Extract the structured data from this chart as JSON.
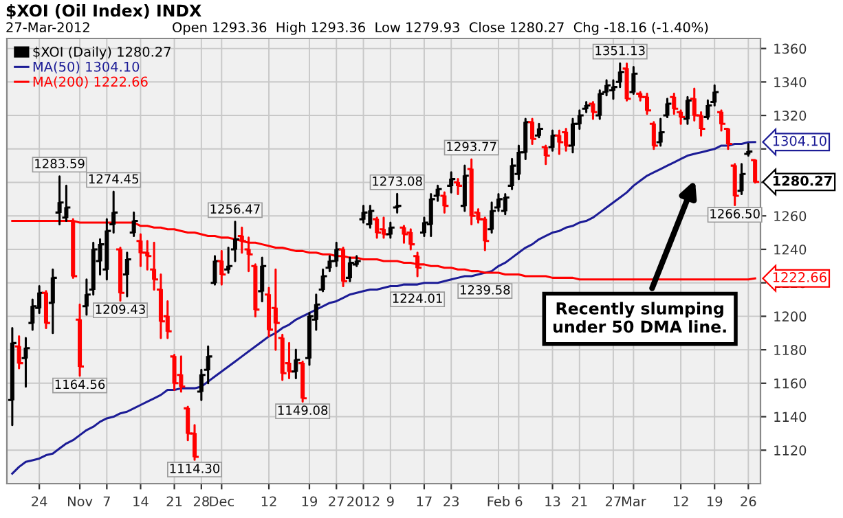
{
  "chart_data": {
    "type": "candlestick",
    "title": "$XOI (Oil Index) INDX",
    "subtitle": "27-Mar-2012",
    "annotations": [
      "Open 1293.36  High 1293.36  Low 1279.93  Close 1280.27  Chg -18.16 (-1.40%)",
      "Recently slumping\nunder 50 DMA line."
    ],
    "categories": [
      null,
      null,
      null,
      null,
      "24",
      null,
      null,
      null,
      null,
      null,
      "Nov",
      null,
      null,
      null,
      "7",
      null,
      null,
      null,
      null,
      "14",
      null,
      null,
      null,
      null,
      "21",
      null,
      null,
      null,
      "28",
      null,
      null,
      "Dec",
      null,
      null,
      null,
      null,
      null,
      null,
      "12",
      null,
      null,
      null,
      null,
      null,
      "19",
      null,
      null,
      null,
      "27",
      null,
      null,
      null,
      "2012",
      null,
      null,
      null,
      "9",
      null,
      null,
      null,
      null,
      "17",
      null,
      null,
      null,
      "23",
      null,
      null,
      null,
      null,
      null,
      null,
      "Feb",
      null,
      null,
      "6",
      null,
      null,
      null,
      null,
      "13",
      null,
      null,
      null,
      "21",
      null,
      null,
      null,
      null,
      "27",
      null,
      null,
      "Mar",
      null,
      null,
      null,
      null,
      null,
      null,
      "12",
      null,
      null,
      null,
      null,
      "19",
      null,
      null,
      null,
      null,
      "26",
      null
    ],
    "ylim": [
      1100,
      1366
    ],
    "yticks": [
      1120,
      1140,
      1160,
      1180,
      1200,
      1220,
      1240,
      1260,
      {
        "value": 1280,
        "label": null
      },
      {
        "value": 1300,
        "label": null
      },
      1320,
      1340,
      1360
    ],
    "grid": true,
    "legend": "top left",
    "series": [
      {
        "name": "$XOI (Daily) 1280.27",
        "ohlc": [
          [
            1150,
            1193,
            1135,
            1184
          ],
          [
            1182,
            1188,
            1169,
            1172
          ],
          [
            1175,
            1187,
            1158,
            1181
          ],
          [
            1196,
            1210,
            1192,
            1206
          ],
          [
            1205,
            1218,
            1202,
            1214
          ],
          [
            1214,
            1215,
            1193,
            1196
          ],
          [
            1208,
            1228,
            1190,
            1223
          ],
          [
            1262,
            1283.59,
            1255,
            1268
          ],
          [
            1259,
            1278,
            1257,
            1265
          ],
          [
            1257,
            1258,
            1223,
            1224
          ],
          [
            1198,
            1207,
            1164.56,
            1170
          ],
          [
            1206,
            1222,
            1201,
            1213
          ],
          [
            1216,
            1244,
            1213,
            1240
          ],
          [
            1233,
            1246,
            1225,
            1243
          ],
          [
            1228,
            1258,
            1222,
            1251
          ],
          [
            1255,
            1274.45,
            1250,
            1262
          ],
          [
            1240,
            1241,
            1209.43,
            1214
          ],
          [
            1225,
            1238,
            1212,
            1234
          ],
          [
            1250,
            1262,
            1248,
            1257
          ],
          [
            1245,
            1249,
            1230,
            1238
          ],
          [
            1238,
            1245,
            1228,
            1236
          ],
          [
            1228,
            1244,
            1216,
            1222
          ],
          [
            1216,
            1225,
            1187,
            1197
          ],
          [
            1200,
            1209,
            1187,
            1191
          ],
          [
            1176,
            1177,
            1156,
            1160
          ],
          [
            1165,
            1176,
            1155,
            1158
          ],
          [
            1145,
            1146,
            1126,
            1130
          ],
          [
            1130,
            1135,
            1114.3,
            1116
          ],
          [
            1155,
            1168,
            1150,
            1165
          ],
          [
            1168,
            1182,
            1160,
            1176
          ],
          [
            1220,
            1236,
            1219,
            1233
          ],
          [
            1233,
            1239,
            1219,
            1225
          ],
          [
            1228,
            1241,
            1226,
            1230
          ],
          [
            1240,
            1256.47,
            1233,
            1246
          ],
          [
            1248,
            1253,
            1238,
            1245
          ],
          [
            1240,
            1247,
            1227,
            1237
          ],
          [
            1230,
            1231,
            1200,
            1204
          ],
          [
            1215,
            1235,
            1209,
            1230
          ],
          [
            1213,
            1217,
            1188,
            1192
          ],
          [
            1205,
            1228,
            1180,
            1196
          ],
          [
            1187,
            1189,
            1162,
            1166
          ],
          [
            1172,
            1184,
            1163,
            1167
          ],
          [
            1167,
            1180,
            1163,
            1174
          ],
          [
            1172,
            1173,
            1149.08,
            1151
          ],
          [
            1175,
            1202,
            1171,
            1200
          ],
          [
            1198,
            1213,
            1192,
            1207
          ],
          [
            1216,
            1228,
            1215,
            1224
          ],
          [
            1229,
            1236,
            1227,
            1233
          ],
          [
            1233,
            1244,
            1230,
            1240
          ],
          [
            1240,
            1241,
            1218,
            1221
          ],
          [
            1223,
            1235,
            1221,
            1232
          ],
          [
            1231,
            1236,
            1230,
            1233
          ],
          [
            1258,
            1266,
            1256,
            1262
          ],
          [
            1255,
            1266,
            1253,
            1263
          ],
          [
            1258,
            1259,
            1247,
            1250
          ],
          [
            1252,
            1259,
            1247,
            1249
          ],
          [
            1249,
            1256,
            1247,
            1253
          ],
          [
            1265,
            1273.08,
            1262,
            1266
          ],
          [
            1253,
            1254,
            1244,
            1249
          ],
          [
            1250,
            1252,
            1240,
            1243
          ],
          [
            1236,
            1238,
            1224.01,
            1229
          ],
          [
            1250,
            1259,
            1248,
            1256
          ],
          [
            1255,
            1273,
            1248,
            1270
          ],
          [
            1272,
            1278,
            1269,
            1276
          ],
          [
            1272,
            1274,
            1262,
            1266
          ],
          [
            1278,
            1286,
            1274,
            1282
          ],
          [
            1280,
            1282,
            1273,
            1278
          ],
          [
            1266,
            1290,
            1263,
            1284
          ],
          [
            1288,
            1293.77,
            1255,
            1260
          ],
          [
            1262,
            1264,
            1256,
            1258
          ],
          [
            1258,
            1259,
            1239.58,
            1245
          ],
          [
            1252,
            1268,
            1250,
            1263
          ],
          [
            1265,
            1273,
            1263,
            1270
          ],
          [
            1263,
            1273,
            1261,
            1271
          ],
          [
            1278,
            1294,
            1276,
            1290
          ],
          [
            1285,
            1302,
            1282,
            1298
          ],
          [
            1298,
            1318,
            1294,
            1316
          ],
          [
            1316,
            1318,
            1303,
            1306
          ],
          [
            1308,
            1315,
            1307,
            1312
          ],
          [
            1301,
            1302,
            1291,
            1296
          ],
          [
            1301,
            1311,
            1299,
            1308
          ],
          [
            1308,
            1311,
            1297,
            1304
          ],
          [
            1310,
            1312,
            1299,
            1302
          ],
          [
            1302,
            1318,
            1298,
            1315
          ],
          [
            1315,
            1323,
            1312,
            1320
          ],
          [
            1324,
            1328,
            1322,
            1326
          ],
          [
            1327,
            1328,
            1318,
            1322
          ],
          [
            1320,
            1335,
            1318,
            1333
          ],
          [
            1334,
            1341,
            1332,
            1338
          ],
          [
            1335,
            1341,
            1330,
            1337
          ],
          [
            1340,
            1351.13,
            1337,
            1346
          ],
          [
            1348,
            1351,
            1329,
            1330
          ],
          [
            1334,
            1349,
            1333,
            1345
          ],
          [
            1333,
            1334,
            1329,
            1331
          ],
          [
            1331,
            1333,
            1321,
            1323
          ],
          [
            1315,
            1316,
            1300,
            1302
          ],
          [
            1304,
            1318,
            1302,
            1310
          ],
          [
            1320,
            1330,
            1319,
            1327
          ],
          [
            1331,
            1333,
            1321,
            1324
          ],
          [
            1322,
            1323,
            1315,
            1319
          ],
          [
            1318,
            1331,
            1315,
            1329
          ],
          [
            1330,
            1336,
            1317,
            1320
          ],
          [
            1320,
            1322,
            1308,
            1312
          ],
          [
            1319,
            1329,
            1318,
            1326
          ],
          [
            1328,
            1338,
            1326,
            1334
          ],
          [
            1322,
            1323,
            1311,
            1315
          ],
          [
            1312,
            1312,
            1300,
            1303
          ],
          [
            1290,
            1291,
            1266.5,
            1272
          ],
          [
            1275,
            1291,
            1273,
            1285
          ],
          [
            1297,
            1303,
            1296,
            1298.43
          ],
          [
            1293.36,
            1293.36,
            1279.93,
            1280.27
          ]
        ],
        "colors": [
          "#000000",
          "#ff0000",
          "#000000",
          "#000000",
          "#000000",
          "#ff0000",
          "#000000",
          "#000000",
          "#000000",
          "#ff0000",
          "#ff0000",
          "#000000",
          "#000000",
          "#000000",
          "#000000",
          "#000000",
          "#ff0000",
          "#000000",
          "#000000",
          "#ff0000",
          "#ff0000",
          "#ff0000",
          "#ff0000",
          "#ff0000",
          "#ff0000",
          "#ff0000",
          "#ff0000",
          "#ff0000",
          "#000000",
          "#000000",
          "#000000",
          "#ff0000",
          "#000000",
          "#000000",
          "#ff0000",
          "#ff0000",
          "#ff0000",
          "#000000",
          "#ff0000",
          "#ff0000",
          "#ff0000",
          "#ff0000",
          "#000000",
          "#ff0000",
          "#000000",
          "#000000",
          "#000000",
          "#000000",
          "#000000",
          "#ff0000",
          "#000000",
          "#000000",
          "#000000",
          "#000000",
          "#ff0000",
          "#ff0000",
          "#000000",
          "#000000",
          "#ff0000",
          "#ff0000",
          "#ff0000",
          "#000000",
          "#000000",
          "#000000",
          "#ff0000",
          "#000000",
          "#ff0000",
          "#000000",
          "#ff0000",
          "#ff0000",
          "#ff0000",
          "#000000",
          "#000000",
          "#000000",
          "#000000",
          "#000000",
          "#000000",
          "#ff0000",
          "#000000",
          "#ff0000",
          "#000000",
          "#ff0000",
          "#ff0000",
          "#000000",
          "#000000",
          "#000000",
          "#ff0000",
          "#000000",
          "#000000",
          "#000000",
          "#000000",
          "#ff0000",
          "#000000",
          "#ff0000",
          "#ff0000",
          "#ff0000",
          "#000000",
          "#000000",
          "#ff0000",
          "#ff0000",
          "#000000",
          "#ff0000",
          "#ff0000",
          "#000000",
          "#000000",
          "#ff0000",
          "#ff0000",
          "#ff0000",
          "#000000",
          "#000000",
          "#ff0000"
        ],
        "value_labels": [
          null,
          null,
          null,
          null,
          null,
          null,
          null,
          "1283.59",
          null,
          null,
          "1164.56",
          null,
          null,
          null,
          null,
          "1274.45",
          "1209.43",
          null,
          null,
          null,
          null,
          null,
          null,
          null,
          null,
          null,
          null,
          "1114.30",
          null,
          null,
          null,
          null,
          null,
          "1256.47",
          null,
          null,
          null,
          null,
          null,
          null,
          null,
          null,
          null,
          "1149.08",
          null,
          null,
          null,
          null,
          null,
          null,
          null,
          null,
          null,
          null,
          null,
          null,
          null,
          "1273.08",
          null,
          null,
          "1224.01",
          null,
          null,
          null,
          null,
          null,
          null,
          null,
          "1293.77",
          null,
          "1239.58",
          null,
          null,
          null,
          null,
          null,
          null,
          null,
          null,
          null,
          null,
          null,
          null,
          null,
          null,
          null,
          null,
          null,
          null,
          null,
          "1351.13",
          null,
          null,
          null,
          null,
          null,
          null,
          null,
          null,
          null,
          null,
          null,
          null,
          null,
          null,
          null,
          null,
          "1266.50",
          null,
          null,
          "1280.27"
        ]
      },
      {
        "type": "line",
        "name": "MA(50) 1304.10",
        "color": "#1c1c96",
        "values": [
          1106,
          1110,
          1113,
          1114,
          1115,
          1117,
          1118,
          1121,
          1124,
          1126,
          1129,
          1132,
          1134,
          1137,
          1139,
          1140,
          1142,
          1143,
          1145,
          1147,
          1149,
          1151,
          1153,
          1156,
          1156,
          1157,
          1157,
          1157,
          1158,
          1161,
          1164,
          1167,
          1170,
          1173,
          1176,
          1179,
          1182,
          1185,
          1188,
          1190,
          1193,
          1195,
          1198,
          1200,
          1202,
          1204,
          1206,
          1208,
          1209,
          1211,
          1213,
          1214,
          1215,
          1216,
          1216,
          1217,
          1218,
          1218,
          1219,
          1219,
          1219,
          1220,
          1220,
          1220,
          1221,
          1222,
          1223,
          1224,
          1224,
          1225,
          1226,
          1227,
          1230,
          1232,
          1235,
          1238,
          1241,
          1243,
          1246,
          1248,
          1250,
          1251,
          1253,
          1254,
          1256,
          1257,
          1259,
          1262,
          1265,
          1268,
          1271,
          1274,
          1278,
          1281,
          1284,
          1286,
          1288,
          1290,
          1292,
          1294,
          1296,
          1297,
          1298,
          1299,
          1300,
          1302,
          1302,
          1303,
          1303,
          1304,
          1304.1
        ],
        "value_labels": [
          null,
          null,
          null,
          null,
          null,
          null,
          null,
          null,
          null,
          null,
          null,
          null,
          null,
          null,
          null,
          null,
          null,
          null,
          null,
          null,
          null,
          null,
          null,
          null,
          null,
          null,
          null,
          null,
          null,
          null,
          null,
          null,
          null,
          null,
          null,
          null,
          null,
          null,
          null,
          null,
          null,
          null,
          null,
          null,
          null,
          null,
          null,
          null,
          null,
          null,
          null,
          null,
          null,
          null,
          null,
          null,
          null,
          null,
          null,
          null,
          null,
          null,
          null,
          null,
          null,
          null,
          null,
          null,
          null,
          null,
          null,
          null,
          null,
          null,
          null,
          null,
          null,
          null,
          null,
          null,
          null,
          null,
          null,
          null,
          null,
          null,
          null,
          null,
          null,
          null,
          null,
          null,
          null,
          null,
          null,
          null,
          null,
          null,
          null,
          null,
          null,
          null,
          null,
          null,
          null,
          null,
          null,
          null,
          null,
          null,
          "1304.10"
        ]
      },
      {
        "type": "line",
        "name": "MA(200) 1222.66",
        "color": "#ff0000",
        "values": [
          1257,
          1257,
          1257,
          1257,
          1257,
          1257,
          1257,
          1257,
          1257,
          1257,
          1256,
          1256,
          1256,
          1256,
          1256,
          1256,
          1256,
          1256,
          1256,
          1254,
          1254,
          1253,
          1253,
          1252,
          1252,
          1251,
          1250,
          1250,
          1249,
          1248,
          1248,
          1247,
          1247,
          1246,
          1245,
          1244,
          1244,
          1243,
          1242,
          1241,
          1241,
          1240,
          1239,
          1239,
          1238,
          1238,
          1237,
          1237,
          1236,
          1236,
          1235,
          1235,
          1234,
          1234,
          1234,
          1233,
          1233,
          1233,
          1232,
          1232,
          1231,
          1231,
          1230,
          1230,
          1229,
          1229,
          1228,
          1228,
          1227,
          1227,
          1226,
          1226,
          1226,
          1225,
          1225,
          1225,
          1224,
          1224,
          1224,
          1224,
          1223,
          1223,
          1223,
          1223,
          1222,
          1222,
          1222,
          1222,
          1222,
          1222,
          1222,
          1222,
          1222,
          1222,
          1222,
          1222,
          1222,
          1222,
          1222,
          1222,
          1222,
          1222,
          1222,
          1222,
          1222,
          1222,
          1222,
          1222,
          1222,
          1222,
          1222.66
        ],
        "value_labels": [
          null,
          null,
          null,
          null,
          null,
          null,
          null,
          null,
          null,
          null,
          null,
          null,
          null,
          null,
          null,
          null,
          null,
          null,
          null,
          null,
          null,
          null,
          null,
          null,
          null,
          null,
          null,
          null,
          null,
          null,
          null,
          null,
          null,
          null,
          null,
          null,
          null,
          null,
          null,
          null,
          null,
          null,
          null,
          null,
          null,
          null,
          null,
          null,
          null,
          null,
          null,
          null,
          null,
          null,
          null,
          null,
          null,
          null,
          null,
          null,
          null,
          null,
          null,
          null,
          null,
          null,
          null,
          null,
          null,
          null,
          null,
          null,
          null,
          null,
          null,
          null,
          null,
          null,
          null,
          null,
          null,
          null,
          null,
          null,
          null,
          null,
          null,
          null,
          null,
          null,
          null,
          null,
          null,
          null,
          null,
          null,
          null,
          null,
          null,
          null,
          null,
          null,
          null,
          null,
          null,
          null,
          null,
          null,
          null,
          null,
          "1222.66"
        ]
      }
    ]
  }
}
